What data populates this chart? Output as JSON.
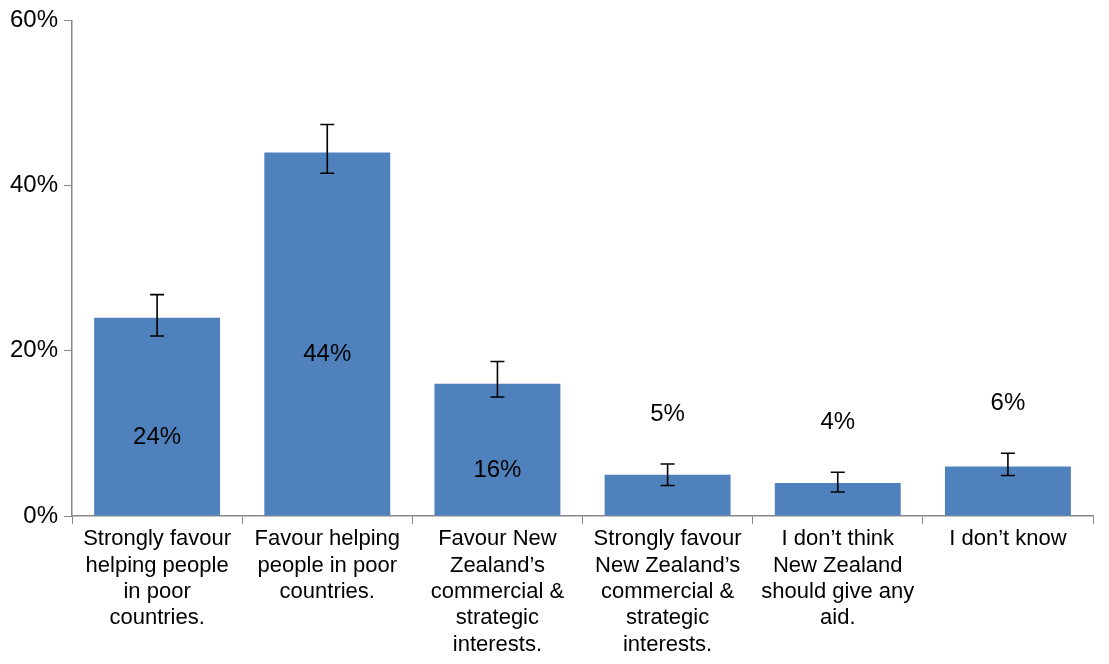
{
  "chart_data": {
    "type": "bar",
    "categories": [
      "Strongly favour helping people in poor countries.",
      "Favour helping people in poor countries.",
      "Favour New Zealand’s commercial & strategic interests.",
      "Strongly favour New Zealand’s commercial & strategic interests.",
      "I don’t think New Zealand should give any aid.",
      "I don’t know"
    ],
    "values": [
      24,
      44,
      16,
      5,
      4,
      6
    ],
    "errors": [
      [
        21.8,
        26.8
      ],
      [
        41.5,
        47.4
      ],
      [
        14.4,
        18.7
      ],
      [
        3.7,
        6.3
      ],
      [
        2.9,
        5.3
      ],
      [
        4.9,
        7.6
      ]
    ],
    "color": "#4f81bd",
    "ylim": [
      0,
      60
    ],
    "yticks": [
      {
        "value": 0,
        "label": "0%"
      },
      {
        "value": 20,
        "label": "20%"
      },
      {
        "value": 40,
        "label": "40%"
      },
      {
        "value": 60,
        "label": "60%"
      }
    ],
    "value_labels": [
      "24%",
      "44%",
      "16%",
      "5%",
      "4%",
      "6%"
    ],
    "grid": false,
    "legend": false
  }
}
